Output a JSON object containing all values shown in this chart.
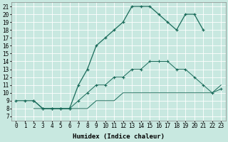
{
  "xlabel": "Humidex (Indice chaleur)",
  "background_color": "#c8e8e0",
  "grid_color": "#ffffff",
  "line_color": "#1a6b5a",
  "xlim": [
    -0.5,
    23.5
  ],
  "ylim": [
    6.5,
    21.5
  ],
  "xticks": [
    0,
    1,
    2,
    3,
    4,
    5,
    6,
    7,
    8,
    9,
    10,
    11,
    12,
    13,
    14,
    15,
    16,
    17,
    18,
    19,
    20,
    21,
    22,
    23
  ],
  "yticks": [
    7,
    8,
    9,
    10,
    11,
    12,
    13,
    14,
    15,
    16,
    17,
    18,
    19,
    20,
    21
  ],
  "curve1_x": [
    0,
    1,
    2,
    3,
    4,
    5,
    6,
    7,
    8,
    9,
    10,
    11,
    12,
    13,
    14,
    15,
    16,
    17,
    18,
    19,
    20,
    21
  ],
  "curve1_y": [
    9,
    9,
    9,
    8,
    8,
    8,
    8,
    11,
    13,
    16,
    17,
    18,
    19,
    21,
    21,
    21,
    20,
    19,
    18,
    20,
    20,
    18
  ],
  "curve2_x": [
    2,
    3,
    4,
    5,
    6,
    7,
    8,
    9,
    10,
    11,
    12,
    13,
    14,
    15,
    16,
    17,
    18,
    19,
    20,
    21,
    22,
    23
  ],
  "curve2_y": [
    8,
    8,
    8,
    8,
    8,
    8,
    8,
    9,
    9,
    9,
    10,
    10,
    10,
    10,
    10,
    10,
    10,
    10,
    10,
    10,
    10,
    11
  ],
  "curve3_x": [
    2,
    3,
    4,
    5,
    6,
    7,
    8,
    9,
    10,
    11,
    12,
    13,
    14,
    15,
    16,
    17,
    18,
    19,
    20,
    21,
    22,
    23
  ],
  "curve3_y": [
    9,
    8,
    8,
    8,
    8,
    9,
    10,
    11,
    11,
    12,
    12,
    13,
    13,
    14,
    14,
    14,
    13,
    13,
    12,
    11,
    10,
    10.5
  ]
}
